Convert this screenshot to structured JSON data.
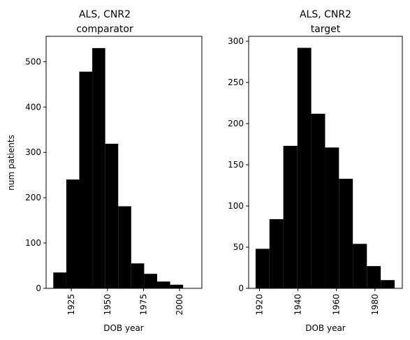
{
  "chart_data": [
    {
      "type": "bar",
      "title": "ALS, CNR2",
      "subtitle": "comparator",
      "xlabel": "DOB year",
      "ylabel": "num patients",
      "xlim": [
        1907.5,
        2015.5
      ],
      "ylim": [
        0,
        556
      ],
      "xticks": [
        "1925",
        "1950",
        "1975",
        "2000"
      ],
      "xtick_values": [
        1925,
        1950,
        1975,
        2000
      ],
      "yticks": [
        "0",
        "100",
        "200",
        "300",
        "400",
        "500"
      ],
      "ytick_values": [
        0,
        100,
        200,
        300,
        400,
        500
      ],
      "bins": [
        {
          "x0": 1912.5,
          "x1": 1921.5,
          "value": 35
        },
        {
          "x0": 1921.5,
          "x1": 1930.5,
          "value": 240
        },
        {
          "x0": 1930.5,
          "x1": 1939.5,
          "value": 478
        },
        {
          "x0": 1939.5,
          "x1": 1948.5,
          "value": 530
        },
        {
          "x0": 1948.5,
          "x1": 1957.5,
          "value": 319
        },
        {
          "x0": 1957.5,
          "x1": 1966.5,
          "value": 181
        },
        {
          "x0": 1966.5,
          "x1": 1975.5,
          "value": 55
        },
        {
          "x0": 1975.5,
          "x1": 1984.5,
          "value": 32
        },
        {
          "x0": 1984.5,
          "x1": 1993.5,
          "value": 15
        },
        {
          "x0": 1993.5,
          "x1": 2002.5,
          "value": 8
        }
      ]
    },
    {
      "type": "bar",
      "title": "ALS, CNR2",
      "subtitle": "target",
      "xlabel": "DOB year",
      "ylabel": "",
      "xlim": [
        1914.4,
        1994.2
      ],
      "ylim": [
        0,
        306
      ],
      "xticks": [
        "1920",
        "1940",
        "1960",
        "1980"
      ],
      "xtick_values": [
        1920,
        1940,
        1960,
        1980
      ],
      "yticks": [
        "0",
        "50",
        "100",
        "150",
        "200",
        "250",
        "300"
      ],
      "ytick_values": [
        0,
        50,
        100,
        150,
        200,
        250,
        300
      ],
      "bins": [
        {
          "x0": 1918.0,
          "x1": 1925.2,
          "value": 48
        },
        {
          "x0": 1925.2,
          "x1": 1932.4,
          "value": 84
        },
        {
          "x0": 1932.4,
          "x1": 1939.7,
          "value": 173
        },
        {
          "x0": 1939.7,
          "x1": 1946.9,
          "value": 292
        },
        {
          "x0": 1946.9,
          "x1": 1954.1,
          "value": 212
        },
        {
          "x0": 1954.1,
          "x1": 1961.3,
          "value": 171
        },
        {
          "x0": 1961.3,
          "x1": 1968.5,
          "value": 133
        },
        {
          "x0": 1968.5,
          "x1": 1975.8,
          "value": 54
        },
        {
          "x0": 1975.8,
          "x1": 1983.0,
          "value": 27
        },
        {
          "x0": 1983.0,
          "x1": 1990.2,
          "value": 10
        }
      ]
    }
  ]
}
